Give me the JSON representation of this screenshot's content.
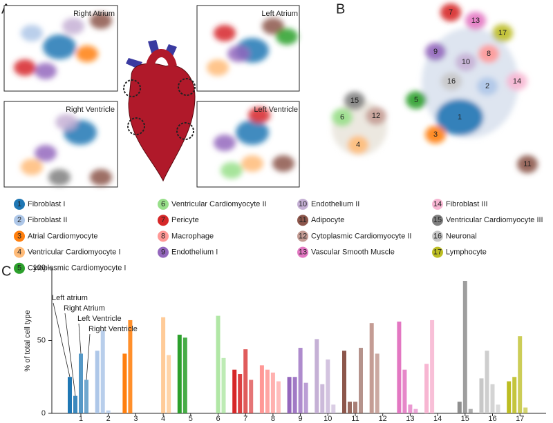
{
  "panels": {
    "a": "A",
    "b": "B",
    "c": "C"
  },
  "umaps": [
    "Right Atrium",
    "Left Atrium",
    "Right Ventricle",
    "Left Ventricle"
  ],
  "cell_types": [
    {
      "id": "1",
      "name": "Fibroblast I",
      "color": "#1f77b4"
    },
    {
      "id": "2",
      "name": "Fibroblast II",
      "color": "#aec7e8"
    },
    {
      "id": "3",
      "name": "Atrial Cardiomyocyte",
      "color": "#ff7f0e"
    },
    {
      "id": "4",
      "name": "Ventricular Cardiomyocyte I",
      "color": "#ffbb78"
    },
    {
      "id": "5",
      "name": "Cytoplasmic Cardiomyocyte I",
      "color": "#2ca02c"
    },
    {
      "id": "6",
      "name": "Ventricular Cardiomyocyte II",
      "color": "#98df8a"
    },
    {
      "id": "7",
      "name": "Pericyte",
      "color": "#d62728"
    },
    {
      "id": "8",
      "name": "Macrophage",
      "color": "#ff9896"
    },
    {
      "id": "9",
      "name": "Endothelium I",
      "color": "#9467bd"
    },
    {
      "id": "10",
      "name": "Endothelium II",
      "color": "#c5b0d5"
    },
    {
      "id": "11",
      "name": "Adipocyte",
      "color": "#8c564b"
    },
    {
      "id": "12",
      "name": "Cytoplasmic Cardiomyocyte II",
      "color": "#c49c94"
    },
    {
      "id": "13",
      "name": "Vascular Smooth Muscle",
      "color": "#e377c2"
    },
    {
      "id": "14",
      "name": "Fibroblast III",
      "color": "#f7b6d2"
    },
    {
      "id": "15",
      "name": "Ventricular Cardiomyocyte III",
      "color": "#7f7f7f"
    },
    {
      "id": "16",
      "name": "Neuronal",
      "color": "#c7c7c7"
    },
    {
      "id": "17",
      "name": "Lymphocyte",
      "color": "#bcbd22"
    }
  ],
  "chart_data": {
    "type": "bar",
    "y_label": "% of total cell type",
    "categories": [
      "1",
      "2",
      "3",
      "4",
      "5",
      "6",
      "7",
      "8",
      "9",
      "10",
      "11",
      "12",
      "13",
      "14",
      "15",
      "16",
      "17"
    ],
    "series": [
      {
        "name": "Left atrium",
        "values": [
          25,
          43,
          41,
          0,
          54,
          0,
          30,
          33,
          25,
          51,
          43,
          62,
          63,
          34,
          0,
          24,
          22
        ]
      },
      {
        "name": "Right Atrium",
        "values": [
          12,
          57,
          64,
          0,
          52,
          0,
          27,
          30,
          25,
          20,
          8,
          41,
          30,
          64,
          8,
          43,
          25
        ]
      },
      {
        "name": "Left Ventricle",
        "values": [
          41,
          2,
          0,
          66,
          0,
          67,
          44,
          28,
          45,
          37,
          8,
          0,
          6,
          0,
          91,
          20,
          53
        ]
      },
      {
        "name": "Right Ventricle",
        "values": [
          23,
          0,
          0,
          40,
          0,
          38,
          23,
          22,
          21,
          6,
          45,
          0,
          3,
          0,
          3,
          6,
          4
        ]
      }
    ],
    "ylim": [
      0,
      100
    ],
    "yticks": [
      0,
      50,
      100
    ]
  }
}
